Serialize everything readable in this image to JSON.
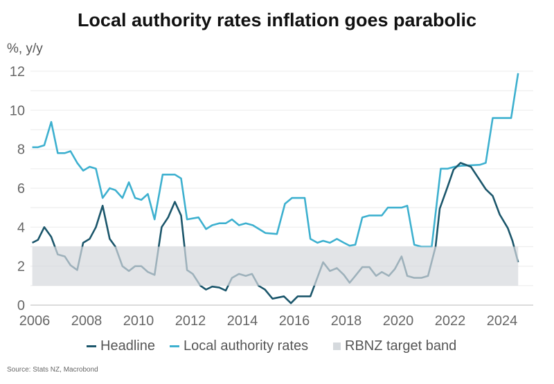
{
  "chart_data": {
    "type": "line",
    "title": "Local authority rates inflation goes parabolic",
    "ylabel": "%, y/y",
    "xlabel": "",
    "source": "Source: Stats NZ, Macrobond",
    "xlim": [
      2006,
      2025
    ],
    "ylim": [
      0,
      12
    ],
    "x_ticks": [
      "2006",
      "2008",
      "2010",
      "2012",
      "2014",
      "2016",
      "2018",
      "2020",
      "2022",
      "2024"
    ],
    "y_ticks": [
      "0",
      "2",
      "4",
      "6",
      "8",
      "10",
      "12"
    ],
    "grid": true,
    "legend_position": "bottom",
    "colors": {
      "headline": "#1b566b",
      "local": "#3db0cf",
      "band": "#d5d9dd"
    },
    "band": {
      "name": "RBNZ target band",
      "low": 1,
      "high": 3
    },
    "series": [
      {
        "name": "Headline",
        "points": [
          [
            2005.91,
            3.2
          ],
          [
            2006.13,
            3.35
          ],
          [
            2006.37,
            4.0
          ],
          [
            2006.64,
            3.5
          ],
          [
            2006.89,
            2.6
          ],
          [
            2007.16,
            2.5
          ],
          [
            2007.38,
            2.05
          ],
          [
            2007.64,
            1.8
          ],
          [
            2007.87,
            3.2
          ],
          [
            2008.12,
            3.4
          ],
          [
            2008.36,
            4.0
          ],
          [
            2008.62,
            5.1
          ],
          [
            2008.89,
            3.4
          ],
          [
            2009.11,
            3.0
          ],
          [
            2009.38,
            2.0
          ],
          [
            2009.63,
            1.75
          ],
          [
            2009.87,
            2.0
          ],
          [
            2010.11,
            2.0
          ],
          [
            2010.36,
            1.7
          ],
          [
            2010.62,
            1.55
          ],
          [
            2010.89,
            4.0
          ],
          [
            2011.14,
            4.5
          ],
          [
            2011.4,
            5.3
          ],
          [
            2011.64,
            4.6
          ],
          [
            2011.87,
            1.8
          ],
          [
            2012.09,
            1.6
          ],
          [
            2012.38,
            1.0
          ],
          [
            2012.6,
            0.8
          ],
          [
            2012.84,
            0.95
          ],
          [
            2013.11,
            0.9
          ],
          [
            2013.36,
            0.75
          ],
          [
            2013.6,
            1.4
          ],
          [
            2013.87,
            1.6
          ],
          [
            2014.13,
            1.5
          ],
          [
            2014.37,
            1.6
          ],
          [
            2014.62,
            1.0
          ],
          [
            2014.87,
            0.8
          ],
          [
            2015.16,
            0.33
          ],
          [
            2015.6,
            0.45
          ],
          [
            2015.87,
            0.1
          ],
          [
            2016.13,
            0.45
          ],
          [
            2016.62,
            0.45
          ],
          [
            2017.11,
            2.2
          ],
          [
            2017.37,
            1.75
          ],
          [
            2017.64,
            1.9
          ],
          [
            2017.91,
            1.55
          ],
          [
            2018.13,
            1.15
          ],
          [
            2018.35,
            1.5
          ],
          [
            2018.62,
            1.95
          ],
          [
            2018.89,
            1.95
          ],
          [
            2019.15,
            1.5
          ],
          [
            2019.37,
            1.7
          ],
          [
            2019.64,
            1.5
          ],
          [
            2019.87,
            1.85
          ],
          [
            2020.13,
            2.5
          ],
          [
            2020.35,
            1.5
          ],
          [
            2020.62,
            1.4
          ],
          [
            2020.89,
            1.4
          ],
          [
            2021.15,
            1.5
          ],
          [
            2021.44,
            3.0
          ],
          [
            2021.6,
            4.95
          ],
          [
            2021.91,
            6.1
          ],
          [
            2022.13,
            6.95
          ],
          [
            2022.4,
            7.3
          ],
          [
            2022.8,
            7.1
          ],
          [
            2023.1,
            6.5
          ],
          [
            2023.37,
            5.95
          ],
          [
            2023.64,
            5.6
          ],
          [
            2023.91,
            4.65
          ],
          [
            2024.22,
            3.95
          ],
          [
            2024.4,
            3.3
          ],
          [
            2024.62,
            2.2
          ]
        ]
      },
      {
        "name": "Local authority rates",
        "points": [
          [
            2005.91,
            8.1
          ],
          [
            2006.13,
            8.1
          ],
          [
            2006.37,
            8.2
          ],
          [
            2006.64,
            9.4
          ],
          [
            2006.89,
            7.8
          ],
          [
            2007.16,
            7.8
          ],
          [
            2007.38,
            7.9
          ],
          [
            2007.64,
            7.3
          ],
          [
            2007.87,
            6.9
          ],
          [
            2008.12,
            7.1
          ],
          [
            2008.36,
            7.0
          ],
          [
            2008.62,
            5.5
          ],
          [
            2008.89,
            6.0
          ],
          [
            2009.11,
            5.9
          ],
          [
            2009.38,
            5.5
          ],
          [
            2009.63,
            6.3
          ],
          [
            2009.87,
            5.5
          ],
          [
            2010.11,
            5.4
          ],
          [
            2010.36,
            5.7
          ],
          [
            2010.62,
            4.4
          ],
          [
            2010.93,
            6.7
          ],
          [
            2011.4,
            6.7
          ],
          [
            2011.64,
            6.5
          ],
          [
            2011.87,
            4.4
          ],
          [
            2012.31,
            4.5
          ],
          [
            2012.6,
            3.9
          ],
          [
            2012.84,
            4.1
          ],
          [
            2013.11,
            4.2
          ],
          [
            2013.36,
            4.2
          ],
          [
            2013.6,
            4.4
          ],
          [
            2013.87,
            4.1
          ],
          [
            2014.13,
            4.2
          ],
          [
            2014.4,
            4.1
          ],
          [
            2014.89,
            3.7
          ],
          [
            2015.33,
            3.65
          ],
          [
            2015.64,
            5.2
          ],
          [
            2015.91,
            5.5
          ],
          [
            2016.4,
            5.5
          ],
          [
            2016.62,
            3.4
          ],
          [
            2016.89,
            3.2
          ],
          [
            2017.11,
            3.3
          ],
          [
            2017.37,
            3.2
          ],
          [
            2017.64,
            3.4
          ],
          [
            2017.91,
            3.2
          ],
          [
            2018.13,
            3.05
          ],
          [
            2018.35,
            3.1
          ],
          [
            2018.62,
            4.5
          ],
          [
            2018.89,
            4.6
          ],
          [
            2019.37,
            4.6
          ],
          [
            2019.6,
            5.0
          ],
          [
            2020.13,
            5.0
          ],
          [
            2020.35,
            5.1
          ],
          [
            2020.62,
            3.1
          ],
          [
            2020.89,
            3.0
          ],
          [
            2021.29,
            3.0
          ],
          [
            2021.64,
            7.0
          ],
          [
            2021.91,
            7.0
          ],
          [
            2022.17,
            7.1
          ],
          [
            2022.44,
            7.15
          ],
          [
            2023.15,
            7.2
          ],
          [
            2023.37,
            7.3
          ],
          [
            2023.64,
            9.6
          ],
          [
            2024.35,
            9.6
          ],
          [
            2024.62,
            11.9
          ]
        ]
      }
    ]
  }
}
